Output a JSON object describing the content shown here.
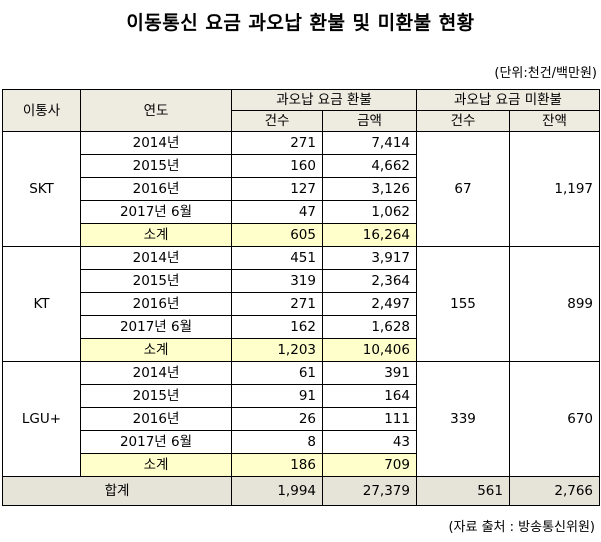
{
  "title": "이동통신 요금 과오납 환불 및 미환불 현황",
  "unit": "(단위:천건/백만원)",
  "headers": {
    "carrier": "이동통신사",
    "carrier_label": "이통사",
    "year": "연도",
    "refund": "과오납 요금 환불",
    "unrefunded": "과오납 요금 미환불",
    "count": "건수",
    "amount": "금액",
    "count2": "건수",
    "balance": "잔액"
  },
  "colors": {
    "header_bg": "#eeece1",
    "subtotal_bg": "#ffffcc",
    "total_bg": "#e6e4d8"
  },
  "groups": [
    {
      "carrier": "SKT",
      "un_count": "67",
      "un_balance": "1,197",
      "rows": [
        {
          "year": "2014년",
          "count": "271",
          "amount": "7,414"
        },
        {
          "year": "2015년",
          "count": "160",
          "amount": "4,662"
        },
        {
          "year": "2016년",
          "count": "127",
          "amount": "3,126"
        },
        {
          "year": "2017년 6월",
          "count": "47",
          "amount": "1,062"
        },
        {
          "year": "소계",
          "count": "605",
          "amount": "16,264"
        }
      ]
    },
    {
      "carrier": "KT",
      "un_count": "155",
      "un_balance": "899",
      "rows": [
        {
          "year": "2014년",
          "count": "451",
          "amount": "3,917"
        },
        {
          "year": "2015년",
          "count": "319",
          "amount": "2,364"
        },
        {
          "year": "2016년",
          "count": "271",
          "amount": "2,497"
        },
        {
          "year": "2017년 6월",
          "count": "162",
          "amount": "1,628"
        },
        {
          "year": "소계",
          "count": "1,203",
          "amount": "10,406"
        }
      ]
    },
    {
      "carrier": "LGU+",
      "un_count": "339",
      "un_balance": "670",
      "rows": [
        {
          "year": "2014년",
          "count": "61",
          "amount": "391"
        },
        {
          "year": "2015년",
          "count": "91",
          "amount": "164"
        },
        {
          "year": "2016년",
          "count": "26",
          "amount": "111"
        },
        {
          "year": "2017년 6월",
          "count": "8",
          "amount": "43"
        },
        {
          "year": "소계",
          "count": "186",
          "amount": "709"
        }
      ]
    }
  ],
  "total": {
    "label": "합계",
    "count": "1,994",
    "amount": "27,379",
    "un_count": "561",
    "un_balance": "2,766"
  },
  "source": "(자료 출처 : 방송통신위원)"
}
